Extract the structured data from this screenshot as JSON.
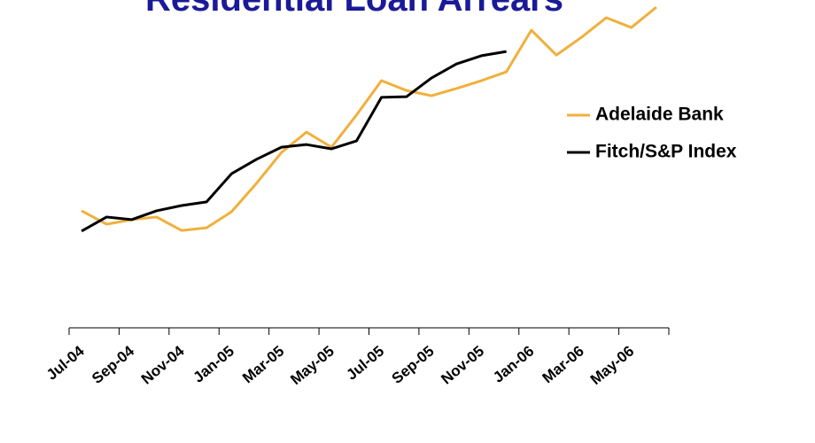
{
  "chart_data": {
    "type": "line",
    "title": "Residential Loan Arrears",
    "categories": [
      "Jul-04",
      null,
      "Sep-04",
      null,
      "Nov-04",
      null,
      "Jan-05",
      null,
      "Mar-05",
      null,
      "May-05",
      null,
      "Jul-05",
      null,
      "Sep-05",
      null,
      "Nov-05",
      null,
      "Jan-06",
      null,
      "Mar-06",
      null,
      "May-06",
      null
    ],
    "series": [
      {
        "name": "Adelaide Bank",
        "color": "#f0b03c",
        "values": [
          35.7,
          31.6,
          33.0,
          33.8,
          29.7,
          30.5,
          35.4,
          44.1,
          53.5,
          59.7,
          55.1,
          64.9,
          75.4,
          72.4,
          70.8,
          73.0,
          75.4,
          78.1,
          90.8,
          83.2,
          88.6,
          94.6,
          91.6,
          97.8
        ]
      },
      {
        "name": "Fitch/S&P Index",
        "color": "#000000",
        "values": [
          29.5,
          33.8,
          33.0,
          35.7,
          37.3,
          38.4,
          47.0,
          51.4,
          55.1,
          55.9,
          54.6,
          57.0,
          70.3,
          70.5,
          76.2,
          80.5,
          83.0,
          84.3,
          null,
          null,
          null,
          null,
          null,
          null
        ]
      }
    ],
    "ylim": [
      0,
      100
    ],
    "legend": "right"
  }
}
